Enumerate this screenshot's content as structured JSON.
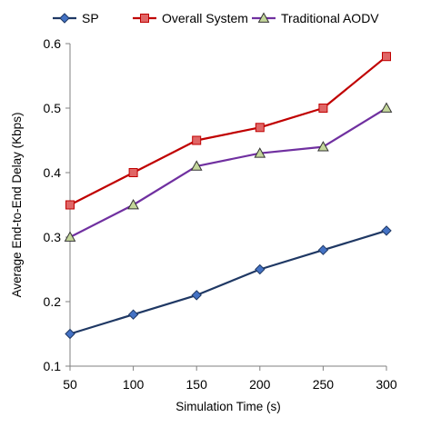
{
  "chart_data": {
    "type": "line",
    "title": "",
    "xlabel": "Simulation Time (s)",
    "ylabel": "Average End-to-End Delay (Kbps)",
    "x": [
      50,
      100,
      150,
      200,
      250,
      300
    ],
    "xlim": [
      50,
      300
    ],
    "ylim": [
      0.1,
      0.6
    ],
    "x_ticks": [
      "50",
      "100",
      "150",
      "200",
      "250",
      "300"
    ],
    "y_ticks": [
      "0.1",
      "0.2",
      "0.3",
      "0.4",
      "0.5",
      "0.6"
    ],
    "grid": false,
    "legend_position": "top",
    "series": [
      {
        "name": "SP",
        "color": "#1f3864",
        "marker_fill": "#4472c4",
        "marker": "diamond",
        "values": [
          0.15,
          0.18,
          0.21,
          0.25,
          0.28,
          0.31
        ]
      },
      {
        "name": "Overall System",
        "color": "#c00000",
        "marker_fill": "#e06666",
        "marker": "square",
        "values": [
          0.35,
          0.4,
          0.45,
          0.47,
          0.5,
          0.58
        ]
      },
      {
        "name": "Traditional AODV",
        "color": "#7030a0",
        "marker_fill": "#c4d79b",
        "marker": "triangle",
        "values": [
          0.3,
          0.35,
          0.41,
          0.43,
          0.44,
          0.5
        ]
      }
    ]
  }
}
